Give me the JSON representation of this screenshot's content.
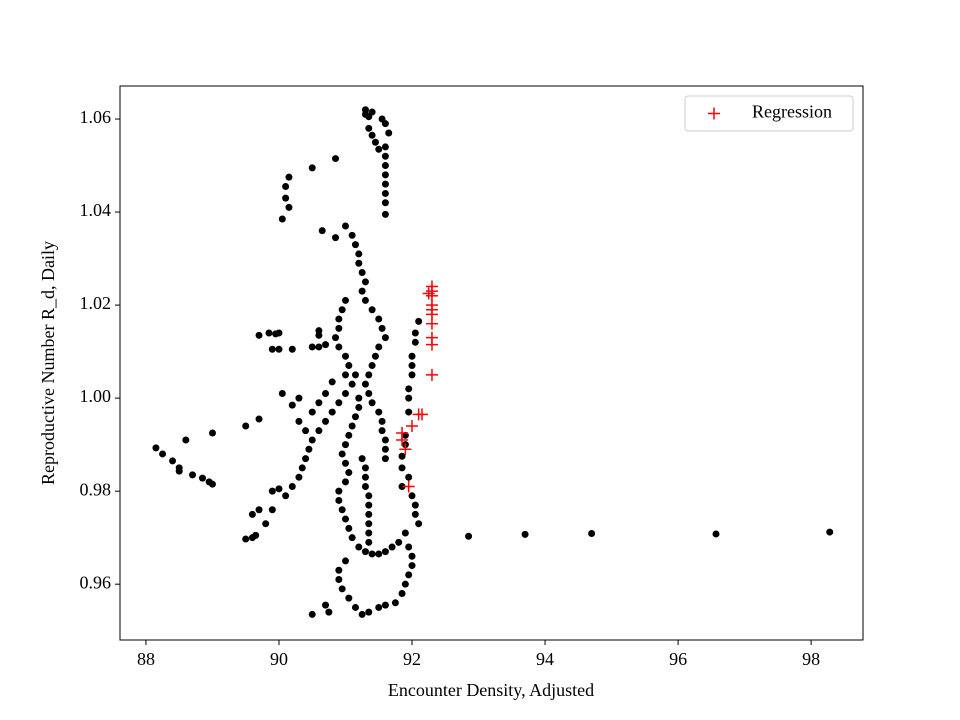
{
  "chart_data": {
    "type": "scatter",
    "xlabel": "Encounter Density, Adjusted",
    "ylabel": "Reproductive Number R_d, Daily",
    "xlim": [
      87.61,
      98.78
    ],
    "ylim": [
      0.948,
      1.0671
    ],
    "xticks": [
      88,
      90,
      92,
      94,
      96,
      98
    ],
    "yticks": [
      0.96,
      0.98,
      {
        "value": 1,
        "label": "1.00"
      },
      1.02,
      1.04,
      1.06
    ],
    "grid": false,
    "legend": "upper right",
    "series": [
      {
        "color": "#000000",
        "marker": "o",
        "x": [
          92.85,
          93.7,
          94.7,
          96.57,
          98.28,
          88.15,
          88.25,
          88.4,
          88.5,
          88.5,
          88.7,
          88.85,
          88.95,
          89.0,
          88.6,
          89.0,
          89.5,
          89.6,
          89.65,
          89.6,
          89.7,
          89.8,
          89.9,
          89.9,
          90.0,
          90.1,
          90.2,
          90.3,
          90.35,
          90.4,
          90.45,
          90.5,
          90.6,
          90.7,
          90.8,
          90.9,
          91.0,
          91.1,
          91.15,
          90.3,
          90.4,
          90.2,
          90.05,
          89.5,
          89.7,
          90.3,
          90.5,
          90.6,
          90.7,
          90.8,
          89.7,
          89.85,
          89.95,
          90.0,
          89.9,
          90.0,
          90.2,
          90.5,
          90.6,
          90.7,
          90.6,
          90.6,
          90.65,
          90.85,
          91.0,
          91.1,
          91.15,
          91.2,
          90.05,
          90.1,
          90.15,
          90.1,
          90.15,
          90.5,
          90.85,
          91.3,
          91.35,
          91.35,
          91.4,
          91.45,
          91.5,
          91.55,
          91.6,
          91.65,
          91.6,
          91.6,
          91.6,
          91.6,
          91.6,
          91.6,
          91.6,
          91.6,
          91.3,
          91.4,
          91.2,
          91.25,
          91.3,
          91.25,
          91.3,
          91.4,
          91.5,
          91.55,
          91.6,
          91.5,
          91.45,
          91.4,
          91.35,
          91.3,
          91.35,
          91.4,
          91.5,
          91.55,
          91.55,
          91.6,
          91.6,
          91.6,
          91.0,
          90.95,
          90.9,
          90.9,
          90.85,
          90.9,
          91.0,
          91.05,
          91.0,
          91.2,
          91.2,
          91.15,
          91.1,
          91.05,
          91.0,
          90.95,
          91.0,
          91.05,
          91.0,
          90.9,
          90.9,
          90.95,
          91.0,
          91.05,
          91.1,
          91.2,
          91.3,
          91.4,
          91.5,
          91.6,
          91.7,
          91.8,
          91.9,
          91.35,
          91.35,
          91.35,
          91.35,
          91.35,
          91.35,
          91.25,
          91.3,
          91.3,
          91.3,
          91.0,
          90.9,
          90.9,
          90.95,
          91.05,
          91.15,
          91.25,
          91.35,
          91.5,
          91.6,
          91.75,
          91.85,
          91.9,
          91.95,
          92.0,
          92.0,
          91.95,
          90.7,
          90.75,
          90.5,
          91.85,
          91.85,
          91.85,
          91.9,
          91.9,
          91.95,
          91.95,
          91.95,
          92.0,
          92.0,
          92.0,
          92.05,
          92.05,
          92.1,
          92.0,
          92.05,
          92.05,
          92.1,
          91.95
        ],
        "values": [
          0.9703,
          0.9707,
          0.9709,
          0.9708,
          0.9712,
          0.9893,
          0.988,
          0.9865,
          0.985,
          0.9843,
          0.9835,
          0.9828,
          0.982,
          0.9815,
          0.991,
          0.9925,
          0.9697,
          0.97,
          0.9705,
          0.975,
          0.976,
          0.973,
          0.976,
          0.98,
          0.9805,
          0.979,
          0.981,
          0.983,
          0.985,
          0.987,
          0.989,
          0.991,
          0.993,
          0.995,
          0.997,
          0.999,
          1.001,
          1.003,
          1.005,
          0.995,
          0.993,
          0.9985,
          1.001,
          0.994,
          0.9955,
          1.0,
          0.997,
          0.999,
          1.001,
          1.0035,
          1.0135,
          1.014,
          1.0138,
          1.014,
          1.0105,
          1.0105,
          1.0105,
          1.011,
          1.011,
          1.0115,
          1.0135,
          1.0145,
          1.036,
          1.0345,
          1.037,
          1.035,
          1.033,
          1.031,
          1.0385,
          1.043,
          1.0475,
          1.0455,
          1.041,
          1.0495,
          1.0515,
          1.061,
          1.0605,
          1.058,
          1.0565,
          1.055,
          1.0535,
          1.06,
          1.059,
          1.057,
          1.054,
          1.052,
          1.05,
          1.048,
          1.046,
          1.044,
          1.042,
          1.0395,
          1.062,
          1.0615,
          1.029,
          1.027,
          1.025,
          1.023,
          1.021,
          1.019,
          1.017,
          1.015,
          1.013,
          1.011,
          1.009,
          1.007,
          1.005,
          1.003,
          1.001,
          0.999,
          0.997,
          0.995,
          0.993,
          0.991,
          0.989,
          0.987,
          1.021,
          1.019,
          1.017,
          1.015,
          1.013,
          1.011,
          1.009,
          1.007,
          1.005,
          1.0,
          0.998,
          0.996,
          0.994,
          0.992,
          0.99,
          0.988,
          0.986,
          0.984,
          0.982,
          0.98,
          0.978,
          0.976,
          0.974,
          0.972,
          0.97,
          0.968,
          0.967,
          0.9665,
          0.9665,
          0.967,
          0.968,
          0.969,
          0.971,
          0.979,
          0.977,
          0.975,
          0.973,
          0.971,
          0.969,
          0.987,
          0.985,
          0.983,
          0.981,
          0.965,
          0.963,
          0.961,
          0.959,
          0.957,
          0.955,
          0.9535,
          0.954,
          0.955,
          0.9555,
          0.956,
          0.958,
          0.96,
          0.962,
          0.964,
          0.966,
          0.968,
          0.9555,
          0.954,
          0.9535,
          0.981,
          0.985,
          0.9875,
          0.99,
          0.992,
          0.997,
          1.0,
          1.002,
          1.005,
          1.007,
          1.009,
          1.012,
          1.014,
          1.0165,
          0.979,
          0.977,
          0.975,
          0.973,
          0.983
        ]
      },
      {
        "name": "Regression",
        "color": "#ff0000",
        "marker": "+",
        "x": [
          92.3,
          92.3,
          92.3,
          92.3,
          92.3,
          92.3,
          92.3,
          92.3,
          92.3,
          92.3,
          92.1,
          92.15,
          92.0,
          91.85,
          91.85,
          91.9,
          91.95,
          92.25
        ],
        "values": [
          1.024,
          1.023,
          1.022,
          1.02,
          1.019,
          1.018,
          1.016,
          1.013,
          1.0115,
          1.005,
          0.9965,
          0.9965,
          0.994,
          0.9925,
          0.991,
          0.989,
          0.981,
          1.0225
        ]
      }
    ]
  }
}
